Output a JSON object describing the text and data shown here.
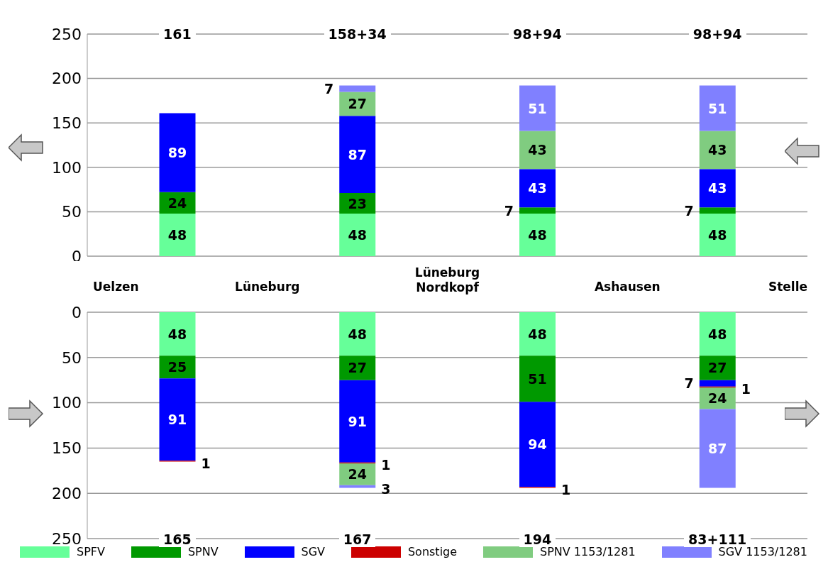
{
  "chart_data": [
    {
      "type": "bar",
      "stacked": true,
      "categories": [
        null,
        null,
        null,
        null
      ],
      "series": [
        {
          "color": "#66ff99",
          "values": [
            48,
            48,
            48,
            48
          ]
        },
        {
          "color": "#009900",
          "values": [
            24,
            23,
            7,
            7
          ]
        },
        {
          "color": "#0000ff",
          "values": [
            89,
            87,
            43,
            43
          ]
        },
        {
          "color": "#80cc80",
          "values": [
            null,
            27,
            43,
            43
          ]
        },
        {
          "color": "#8080ff",
          "values": [
            null,
            7,
            51,
            51
          ]
        }
      ],
      "ylim": [
        0,
        250
      ],
      "yticks": [
        0,
        50,
        100,
        150,
        200,
        250
      ],
      "grid": "y",
      "tick_labels": "y",
      "data_labels": true,
      "legend": false,
      "annotations": [
        "161",
        "158+34",
        "98+94",
        "98+94",
        "Uelzen",
        "Lüneburg",
        "Lüneburg Nordkopf",
        "Ashausen",
        "Stelle"
      ]
    },
    {
      "type": "bar",
      "stacked": true,
      "categories": [
        null,
        null,
        null,
        null
      ],
      "series": [
        {
          "name": "SPFV",
          "color": "#66ff99",
          "values": [
            48,
            48,
            48,
            48
          ]
        },
        {
          "name": "SPNV",
          "color": "#009900",
          "values": [
            25,
            27,
            51,
            27
          ]
        },
        {
          "name": "SGV",
          "color": "#0000ff",
          "values": [
            91,
            91,
            94,
            7
          ]
        },
        {
          "name": "Sonstige",
          "color": "#cc0000",
          "values": [
            1,
            1,
            1,
            1
          ]
        },
        {
          "name": "SPNV 1153/1281",
          "color": "#80cc80",
          "values": [
            null,
            24,
            null,
            24
          ]
        },
        {
          "name": "SGV 1153/1281",
          "color": "#8080ff",
          "values": [
            null,
            3,
            null,
            87
          ]
        }
      ],
      "ylim": [
        250,
        0
      ],
      "yticks": [
        0,
        50,
        100,
        150,
        200,
        250
      ],
      "grid": "y",
      "tick_labels": "y",
      "data_labels": true,
      "legend": "bottom",
      "annotations": [
        "165",
        "167",
        "194",
        "83+111"
      ]
    }
  ]
}
